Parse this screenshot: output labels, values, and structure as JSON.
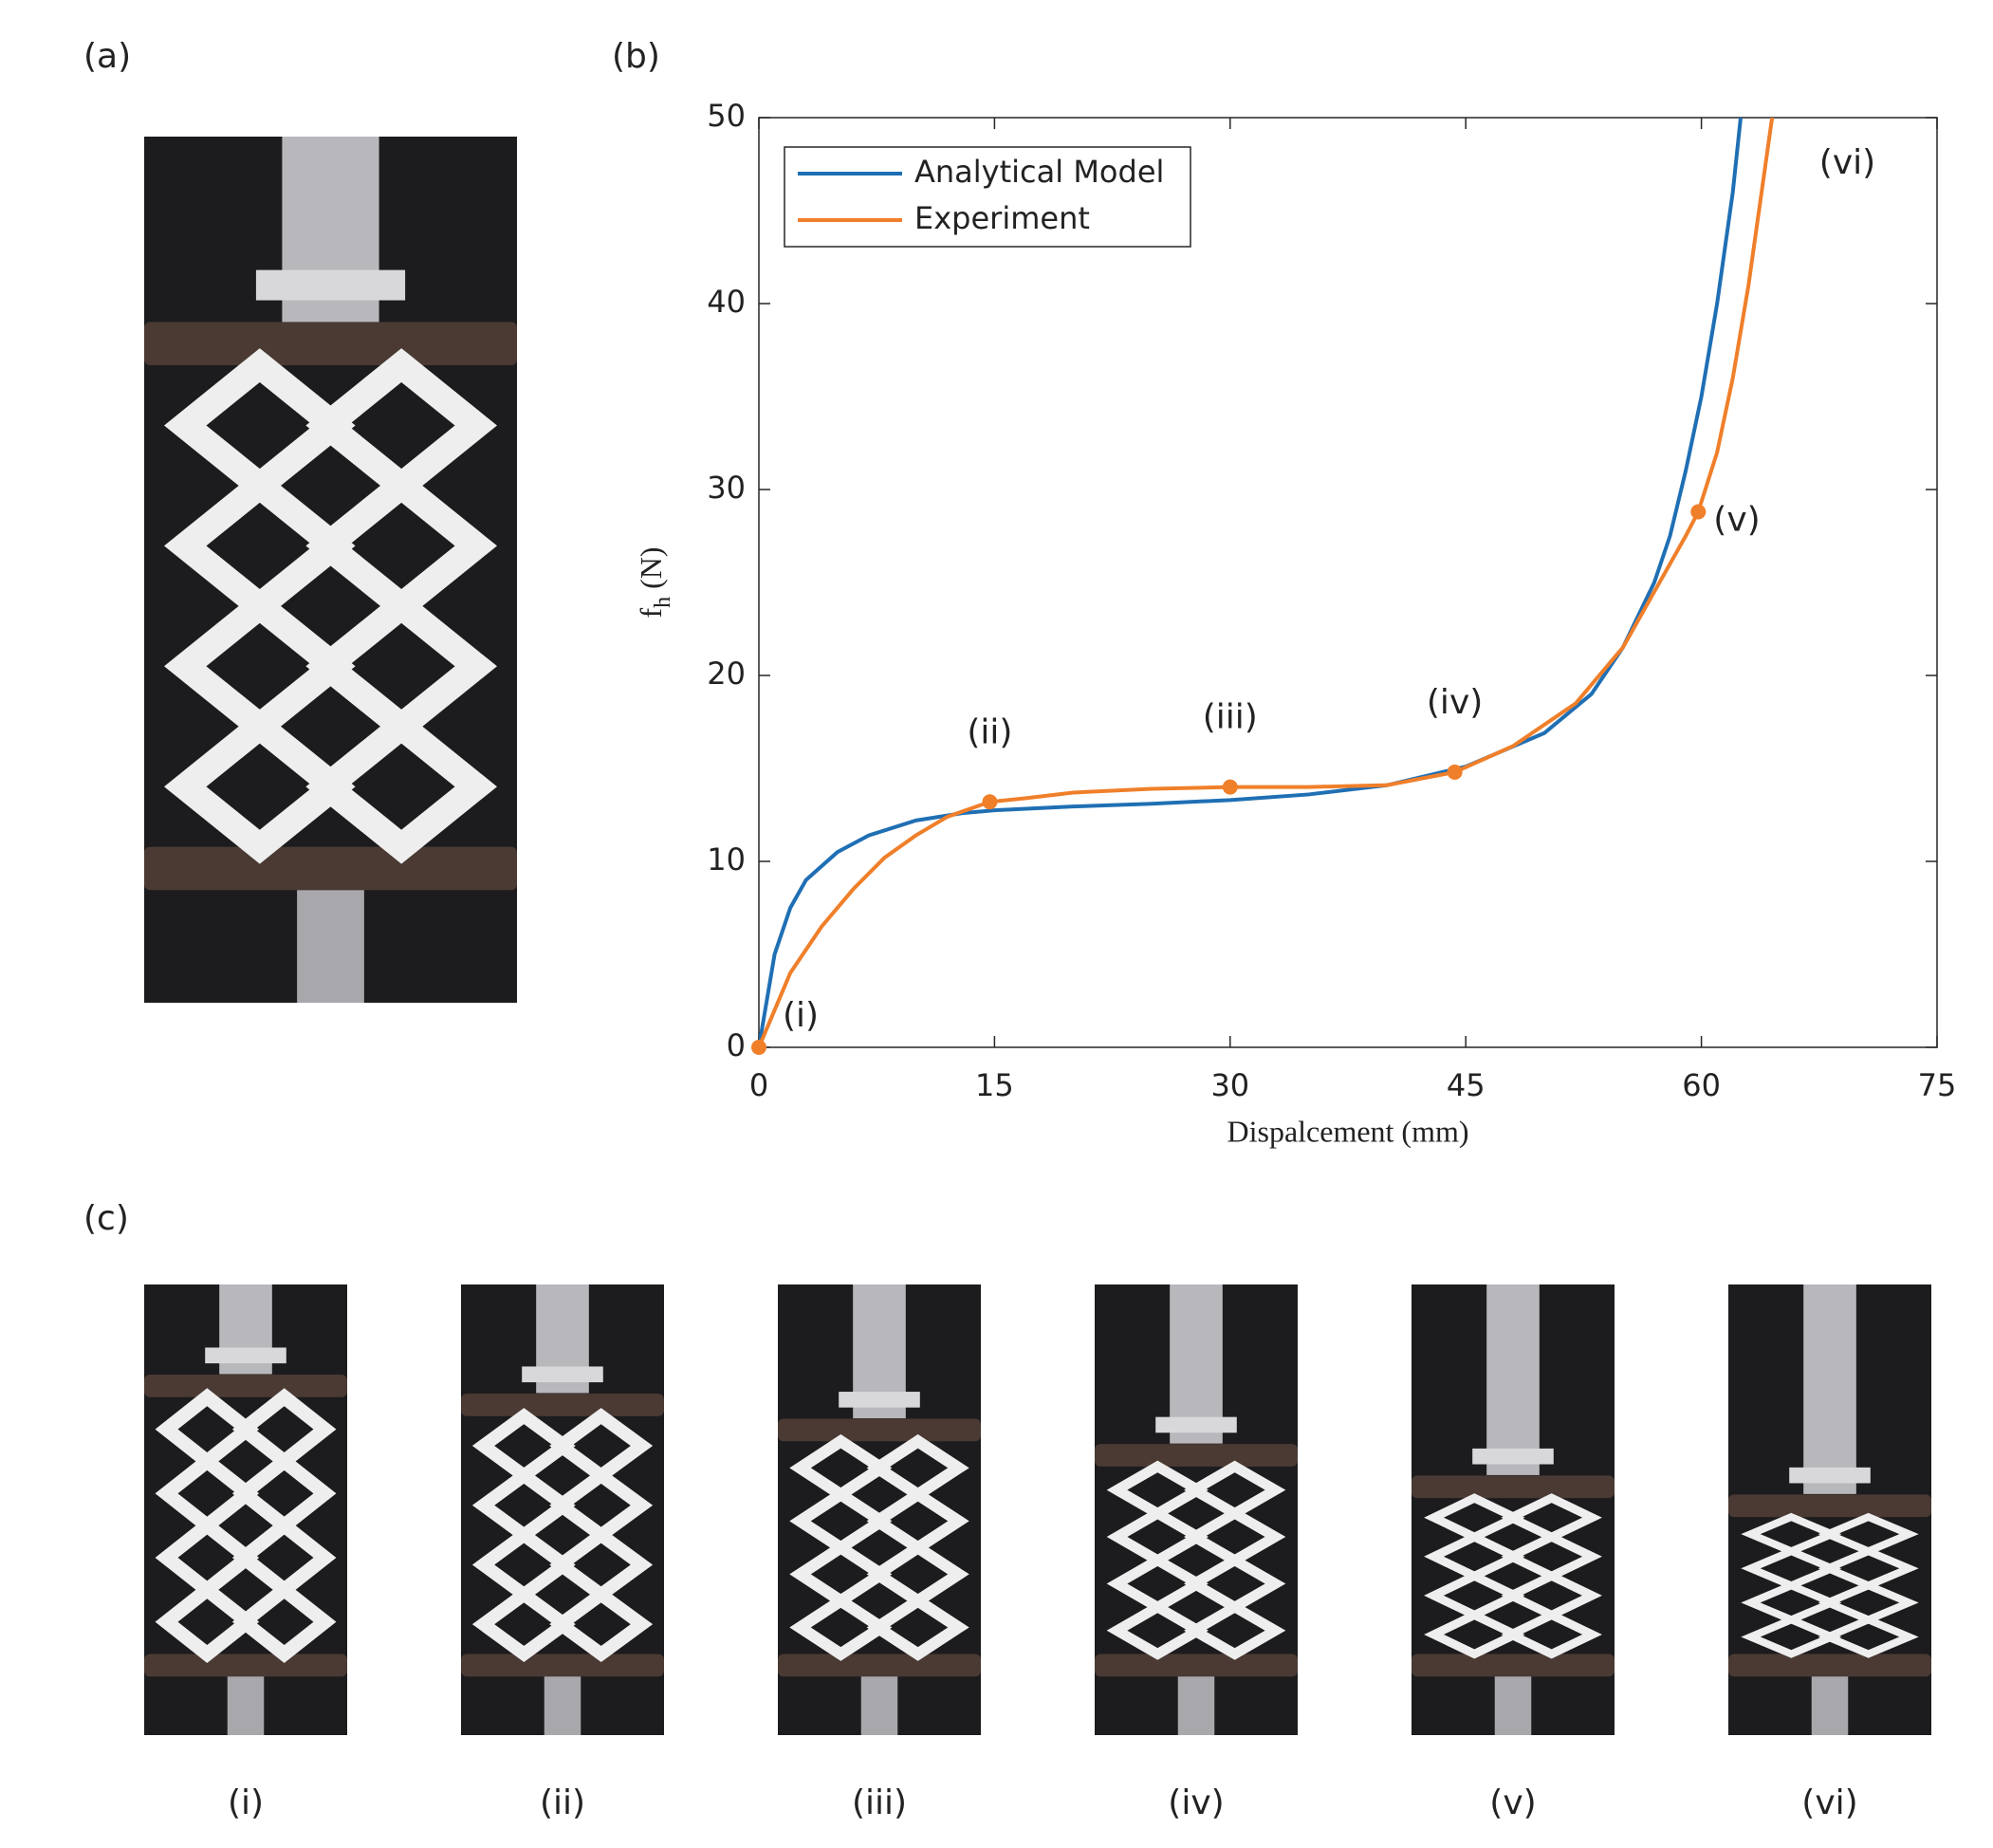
{
  "panel_labels": [
    "(a)",
    "(b)",
    "(c)"
  ],
  "chart_data": {
    "type": "line",
    "xlabel": "Dispalcement (mm)",
    "ylabel": {
      "main": "f",
      "sub": "h",
      "unit": "(N)"
    },
    "xlim": [
      0,
      75
    ],
    "xticks": [
      0,
      15,
      30,
      45,
      60,
      75
    ],
    "ylim": [
      0,
      50
    ],
    "yticks": [
      0,
      10,
      20,
      30,
      40,
      50
    ],
    "grid": false,
    "legend": "upper left",
    "series": [
      {
        "name": "Analytical Model",
        "color": "#1f6fb4",
        "x": [
          0,
          1,
          2,
          3,
          5,
          7,
          10,
          13,
          15,
          20,
          25,
          30,
          35,
          40,
          45,
          50,
          53,
          55,
          57,
          58,
          59,
          60,
          61,
          62,
          62.5
        ],
        "values": [
          0,
          5,
          7.5,
          9,
          10.5,
          11.4,
          12.2,
          12.6,
          12.75,
          12.95,
          13.1,
          13.3,
          13.6,
          14.1,
          15.1,
          16.9,
          19,
          21.5,
          25,
          27.5,
          31,
          35,
          40,
          46,
          50
        ]
      },
      {
        "name": "Experiment",
        "color": "#f07f2a",
        "x": [
          0,
          1,
          2,
          4,
          6,
          8,
          10,
          12,
          14.7,
          17,
          20,
          25,
          30,
          35,
          40,
          44.3,
          48,
          52,
          55,
          57,
          59,
          59.8,
          61,
          62,
          63,
          64,
          64.5
        ],
        "values": [
          0,
          2,
          4,
          6.5,
          8.5,
          10.2,
          11.4,
          12.4,
          13.2,
          13.4,
          13.7,
          13.9,
          14,
          14,
          14.1,
          14.8,
          16.2,
          18.5,
          21.5,
          24.5,
          27.5,
          28.8,
          32,
          36,
          41,
          47,
          50
        ]
      }
    ],
    "annotations": [
      {
        "text": "(i)",
        "x": 0,
        "y": 0,
        "marker": true
      },
      {
        "text": "(ii)",
        "x": 14.7,
        "y": 13.2,
        "marker": true
      },
      {
        "text": "(iii)",
        "x": 30,
        "y": 14,
        "marker": true
      },
      {
        "text": "(iv)",
        "x": 44.3,
        "y": 14.8,
        "marker": true
      },
      {
        "text": "(v)",
        "x": 59.8,
        "y": 28.8,
        "marker": true
      },
      {
        "text": "(vi)",
        "x": 67.5,
        "y": 47.5,
        "marker": false
      }
    ]
  },
  "photo_captions": [
    "(i)",
    "(ii)",
    "(iii)",
    "(iv)",
    "(v)",
    "(vi)"
  ]
}
